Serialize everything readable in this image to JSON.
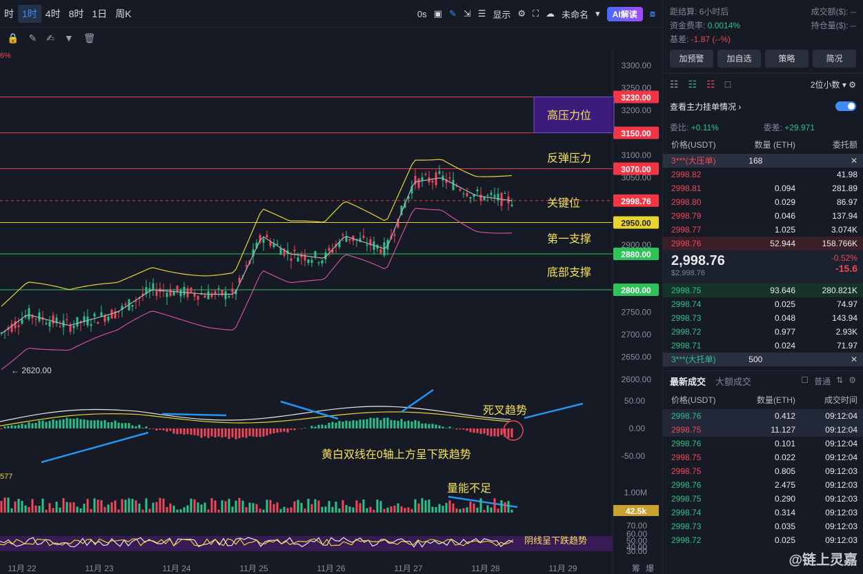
{
  "toolbar": {
    "timeframes": [
      "时",
      "1时",
      "4时",
      "8时",
      "1日",
      "周K"
    ],
    "countdown": "0s",
    "display_label": "显示",
    "unnamed_label": "未命名",
    "ai_label": "AI解读"
  },
  "chart": {
    "change_label": "6%",
    "price_ticks": [
      "3300.00",
      "3250.00",
      "3200.00",
      "3100.00",
      "3050.00",
      "2900.00",
      "2750.00",
      "2700.00",
      "2650.00",
      "2600.00"
    ],
    "levels": [
      {
        "price": "3230.00",
        "color": "#f23645"
      },
      {
        "price": "3150.00",
        "color": "#f23645"
      },
      {
        "price": "3070.00",
        "color": "#f23645"
      },
      {
        "price": "2998.76",
        "color": "#f23645"
      },
      {
        "price": "2950.00",
        "color": "#e8d630"
      },
      {
        "price": "2880.00",
        "color": "#2ec25a"
      },
      {
        "price": "2800.00",
        "color": "#2ec25a"
      }
    ],
    "annotations": {
      "high_pressure": "高压力位",
      "rebound_pressure": "反弹压力",
      "key_level": "关键位",
      "first_support": "第一支撑",
      "bottom_support": "底部支撑",
      "low_marker": "← 2620.00",
      "death_cross": "死叉趋势",
      "macd_note": "黄白双线在0轴上方呈下跌趋势",
      "volume_note": "量能不足",
      "rsi_note": "阴线呈下跌趋势",
      "macd_left_value": "577"
    },
    "macd_ticks": [
      "50.00",
      "0.00",
      "-50.00"
    ],
    "volume_ticks": [
      "1.00M"
    ],
    "volume_value": "42.5k",
    "rsi_ticks": [
      "70.00",
      "60.00",
      "50.00",
      "40.00",
      "30.00"
    ],
    "x_labels": [
      "11月 22",
      "11月 23",
      "11月 24",
      "11月 25",
      "11月 26",
      "11月 27",
      "11月 28",
      "11月 29"
    ],
    "x_corner": [
      "筹",
      "爆"
    ]
  },
  "side": {
    "settle_label": "距结算:",
    "settle_value": "6小时后",
    "turnover_label": "成交额($):",
    "turnover_value": "--",
    "funding_label": "资金费率:",
    "funding_value": "0.0014%",
    "oi_label": "持仓量($):",
    "oi_value": "--",
    "basis_label": "基差:",
    "basis_value": "-1.87 (--%)",
    "buttons": [
      "加预警",
      "加自选",
      "策略",
      "简况"
    ],
    "decimals": "2位小数",
    "main_orders": "查看主力挂单情况",
    "ratio_label": "委比:",
    "ratio_value": "+0.11%",
    "diff_label": "委差:",
    "diff_value": "+29.971",
    "book_headers": [
      "价格(USDT)",
      "数量 (ETH)",
      "委托额"
    ],
    "big_ask_label": "3***(大压单)",
    "big_ask_value": "168",
    "asks": [
      [
        "2998.82",
        "41.98"
      ],
      [
        "2998.81",
        "0.094",
        "281.89"
      ],
      [
        "2998.80",
        "0.029",
        "86.97"
      ],
      [
        "2998.79",
        "0.046",
        "137.94"
      ],
      [
        "2998.77",
        "1.025",
        "3.074K"
      ],
      [
        "2998.76",
        "52.944",
        "158.766K"
      ]
    ],
    "last_price": "2,998.76",
    "last_price_sub": "$2,998.76",
    "change_pct": "-0.52%",
    "change_abs": "-15.6",
    "bids": [
      [
        "2998.75",
        "93.646",
        "280.821K"
      ],
      [
        "2998.74",
        "0.025",
        "74.97"
      ],
      [
        "2998.73",
        "0.048",
        "143.94"
      ],
      [
        "2998.72",
        "0.977",
        "2.93K"
      ],
      [
        "2998.71",
        "0.024",
        "71.97"
      ]
    ],
    "big_bid_label": "3***(大托单)",
    "big_bid_value": "500",
    "trades_tab": "最新成交",
    "large_tab": "大额成交",
    "normal_label": "普通",
    "trade_headers": [
      "价格(USDT)",
      "数量(ETH)",
      "成交时间"
    ],
    "trades": [
      [
        "2998.76",
        "0.412",
        "09:12:04",
        "green"
      ],
      [
        "2998.75",
        "11.127",
        "09:12:04",
        "red"
      ],
      [
        "2998.76",
        "0.101",
        "09:12:04",
        "green"
      ],
      [
        "2998.75",
        "0.022",
        "09:12:04",
        "red"
      ],
      [
        "2998.75",
        "0.805",
        "09:12:03",
        "red"
      ],
      [
        "2998.76",
        "2.475",
        "09:12:03",
        "green"
      ],
      [
        "2998.75",
        "0.290",
        "09:12:03",
        "green"
      ],
      [
        "2998.74",
        "0.314",
        "09:12:03",
        "green"
      ],
      [
        "2998.73",
        "0.035",
        "09:12:03",
        "green"
      ],
      [
        "2998.72",
        "0.025",
        "09:12:03",
        "green"
      ]
    ],
    "watermark": "@链上灵嘉"
  }
}
